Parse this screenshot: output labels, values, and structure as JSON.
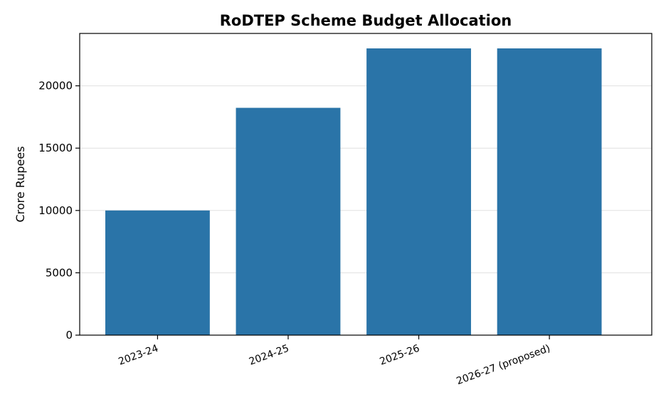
{
  "chart_data": {
    "type": "bar",
    "title": "RoDTEP Scheme Budget Allocation",
    "xlabel": "",
    "ylabel": "Crore Rupees",
    "categories": [
      "2023-24",
      "2024-25",
      "2025-26",
      "2026-27 (proposed)"
    ],
    "values": [
      10000,
      18233,
      23000,
      23000
    ],
    "ylim": [
      0,
      24200
    ],
    "yticks": [
      0,
      5000,
      10000,
      15000,
      20000
    ],
    "grid": "y",
    "bar_color": "#2a74a8",
    "xtick_rotation": -20
  }
}
